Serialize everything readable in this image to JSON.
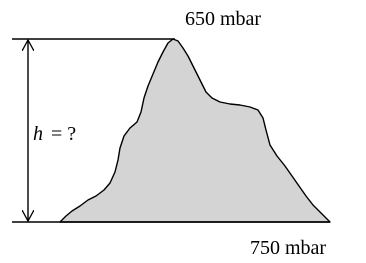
{
  "labels": {
    "top_pressure": "650 mbar",
    "bottom_pressure": "750 mbar",
    "height_variable": "h",
    "height_question": "= ?"
  }
}
